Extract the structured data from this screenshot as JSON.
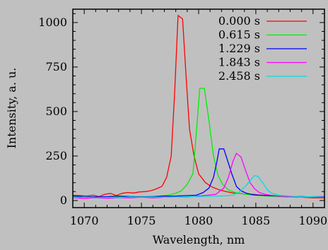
{
  "chart_data": {
    "type": "line",
    "title": "",
    "xlabel": "Wavelength, nm",
    "ylabel": "Intensity, a. u.",
    "xlim": [
      1069,
      1091
    ],
    "ylim": [
      -40,
      1075
    ],
    "x_ticks": [
      1070,
      1075,
      1080,
      1085,
      1090
    ],
    "y_ticks": [
      0,
      250,
      500,
      750,
      1000
    ],
    "grid": false,
    "legend_position": "top-right",
    "series": [
      {
        "name": "0.000 s",
        "color": "#ff0000",
        "points": [
          [
            1069,
            30
          ],
          [
            1069.6,
            28
          ],
          [
            1070.2,
            25
          ],
          [
            1070.8,
            30
          ],
          [
            1071.3,
            22
          ],
          [
            1071.8,
            35
          ],
          [
            1072.3,
            40
          ],
          [
            1072.8,
            28
          ],
          [
            1073.3,
            40
          ],
          [
            1073.8,
            45
          ],
          [
            1074.3,
            42
          ],
          [
            1074.8,
            48
          ],
          [
            1075.3,
            50
          ],
          [
            1075.8,
            55
          ],
          [
            1076.3,
            65
          ],
          [
            1076.8,
            80
          ],
          [
            1077.2,
            130
          ],
          [
            1077.6,
            250
          ],
          [
            1077.9,
            600
          ],
          [
            1078.2,
            1040
          ],
          [
            1078.6,
            1020
          ],
          [
            1078.9,
            700
          ],
          [
            1079.2,
            400
          ],
          [
            1079.6,
            250
          ],
          [
            1080.0,
            150
          ],
          [
            1080.6,
            100
          ],
          [
            1081.2,
            75
          ],
          [
            1081.8,
            60
          ],
          [
            1082.4,
            50
          ],
          [
            1083.0,
            42
          ],
          [
            1083.6,
            40
          ],
          [
            1084.2,
            35
          ],
          [
            1084.8,
            35
          ],
          [
            1085.4,
            30
          ],
          [
            1086.0,
            28
          ],
          [
            1087.0,
            22
          ],
          [
            1088.0,
            20
          ],
          [
            1089.0,
            18
          ],
          [
            1090.0,
            15
          ],
          [
            1091.0,
            15
          ]
        ]
      },
      {
        "name": "0.615 s",
        "color": "#00ee00",
        "points": [
          [
            1069,
            20
          ],
          [
            1070,
            18
          ],
          [
            1071,
            15
          ],
          [
            1072,
            20
          ],
          [
            1073,
            20
          ],
          [
            1074,
            22
          ],
          [
            1075,
            22
          ],
          [
            1075.8,
            22
          ],
          [
            1076.5,
            25
          ],
          [
            1077.3,
            30
          ],
          [
            1078,
            40
          ],
          [
            1078.5,
            55
          ],
          [
            1079,
            90
          ],
          [
            1079.5,
            150
          ],
          [
            1079.8,
            380
          ],
          [
            1080.1,
            630
          ],
          [
            1080.5,
            630
          ],
          [
            1080.9,
            450
          ],
          [
            1081.3,
            250
          ],
          [
            1081.7,
            140
          ],
          [
            1082.1,
            90
          ],
          [
            1082.6,
            60
          ],
          [
            1083.2,
            45
          ],
          [
            1083.8,
            38
          ],
          [
            1084.5,
            32
          ],
          [
            1085.2,
            28
          ],
          [
            1086,
            25
          ],
          [
            1087,
            22
          ],
          [
            1088,
            20
          ],
          [
            1089,
            18
          ],
          [
            1090,
            20
          ],
          [
            1091,
            20
          ]
        ]
      },
      {
        "name": "1.229 s",
        "color": "#0000ff",
        "points": [
          [
            1069,
            25
          ],
          [
            1070,
            22
          ],
          [
            1071,
            20
          ],
          [
            1072,
            22
          ],
          [
            1073,
            25
          ],
          [
            1074,
            22
          ],
          [
            1075,
            20
          ],
          [
            1076,
            22
          ],
          [
            1077,
            25
          ],
          [
            1078,
            25
          ],
          [
            1079,
            28
          ],
          [
            1079.8,
            30
          ],
          [
            1080.4,
            45
          ],
          [
            1080.9,
            70
          ],
          [
            1081.3,
            130
          ],
          [
            1081.6,
            220
          ],
          [
            1081.8,
            290
          ],
          [
            1082.2,
            290
          ],
          [
            1082.5,
            230
          ],
          [
            1082.9,
            150
          ],
          [
            1083.3,
            80
          ],
          [
            1083.7,
            55
          ],
          [
            1084.2,
            40
          ],
          [
            1084.8,
            32
          ],
          [
            1085.4,
            30
          ],
          [
            1086,
            28
          ],
          [
            1087,
            25
          ],
          [
            1088,
            22
          ],
          [
            1089,
            22
          ],
          [
            1090,
            20
          ],
          [
            1091,
            20
          ]
        ]
      },
      {
        "name": "1.843 s",
        "color": "#ff00ff",
        "points": [
          [
            1069,
            15
          ],
          [
            1070,
            12
          ],
          [
            1071,
            15
          ],
          [
            1072,
            12
          ],
          [
            1073,
            15
          ],
          [
            1074,
            15
          ],
          [
            1075,
            18
          ],
          [
            1076,
            15
          ],
          [
            1077,
            18
          ],
          [
            1078,
            20
          ],
          [
            1079,
            20
          ],
          [
            1080,
            25
          ],
          [
            1080.8,
            30
          ],
          [
            1081.5,
            35
          ],
          [
            1082.2,
            70
          ],
          [
            1082.6,
            130
          ],
          [
            1083,
            220
          ],
          [
            1083.3,
            265
          ],
          [
            1083.7,
            245
          ],
          [
            1084.1,
            170
          ],
          [
            1084.5,
            100
          ],
          [
            1084.9,
            65
          ],
          [
            1085.3,
            45
          ],
          [
            1085.8,
            35
          ],
          [
            1086.3,
            30
          ],
          [
            1087,
            25
          ],
          [
            1088,
            22
          ],
          [
            1089,
            20
          ],
          [
            1090,
            18
          ],
          [
            1091,
            20
          ]
        ]
      },
      {
        "name": "2.458 s",
        "color": "#00dddd",
        "points": [
          [
            1069,
            15
          ],
          [
            1070,
            20
          ],
          [
            1071,
            15
          ],
          [
            1072,
            18
          ],
          [
            1073,
            15
          ],
          [
            1074,
            20
          ],
          [
            1075,
            18
          ],
          [
            1076,
            20
          ],
          [
            1077,
            18
          ],
          [
            1078,
            20
          ],
          [
            1079,
            22
          ],
          [
            1080,
            22
          ],
          [
            1081,
            25
          ],
          [
            1082,
            25
          ],
          [
            1083,
            30
          ],
          [
            1083.6,
            50
          ],
          [
            1084.1,
            80
          ],
          [
            1084.6,
            120
          ],
          [
            1084.9,
            140
          ],
          [
            1085.2,
            135
          ],
          [
            1085.6,
            100
          ],
          [
            1086,
            60
          ],
          [
            1086.4,
            40
          ],
          [
            1087,
            30
          ],
          [
            1088,
            25
          ],
          [
            1089,
            20
          ],
          [
            1090,
            22
          ],
          [
            1091,
            25
          ]
        ]
      }
    ]
  }
}
